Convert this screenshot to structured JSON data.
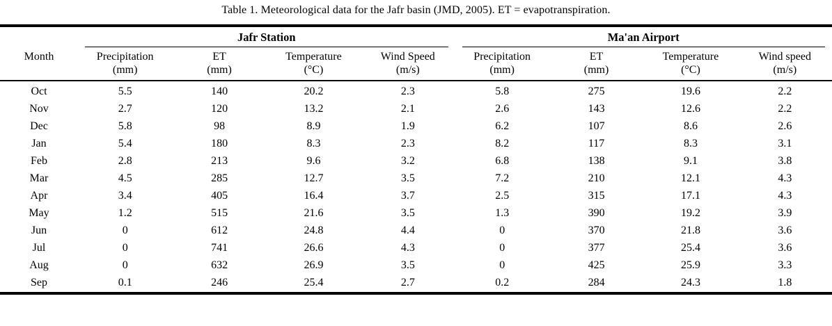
{
  "page": {
    "caption": "Table 1. Meteorological data for the Jafr basin (JMD, 2005). ET = evapotranspiration."
  },
  "colors": {
    "background": "#ffffff",
    "text": "#000000",
    "rule": "#000000"
  },
  "table": {
    "month_header": "Month",
    "groups": [
      {
        "label": "Jafr Station"
      },
      {
        "label": "Ma'an Airport"
      }
    ],
    "columns": [
      {
        "group": "Jafr Station",
        "name": "Precipitation",
        "unit": "(mm)"
      },
      {
        "group": "Jafr Station",
        "name": "ET",
        "unit": "(mm)"
      },
      {
        "group": "Jafr Station",
        "name": "Temperature",
        "unit": "(°C)"
      },
      {
        "group": "Jafr Station",
        "name": "Wind Speed",
        "unit": "(m/s)"
      },
      {
        "group": "Ma'an Airport",
        "name": "Precipitation",
        "unit": "(mm)"
      },
      {
        "group": "Ma'an Airport",
        "name": "ET",
        "unit": "(mm)"
      },
      {
        "group": "Ma'an Airport",
        "name": "Temperature",
        "unit": "(°C)"
      },
      {
        "group": "Ma'an Airport",
        "name": "Wind speed",
        "unit": "(m/s)"
      }
    ],
    "rows": [
      {
        "month": "Oct",
        "values": [
          "5.5",
          "140",
          "20.2",
          "2.3",
          "5.8",
          "275",
          "19.6",
          "2.2"
        ]
      },
      {
        "month": "Nov",
        "values": [
          "2.7",
          "120",
          "13.2",
          "2.1",
          "2.6",
          "143",
          "12.6",
          "2.2"
        ]
      },
      {
        "month": "Dec",
        "values": [
          "5.8",
          "98",
          "8.9",
          "1.9",
          "6.2",
          "107",
          "8.6",
          "2.6"
        ]
      },
      {
        "month": "Jan",
        "values": [
          "5.4",
          "180",
          "8.3",
          "2.3",
          "8.2",
          "117",
          "8.3",
          "3.1"
        ]
      },
      {
        "month": "Feb",
        "values": [
          "2.8",
          "213",
          "9.6",
          "3.2",
          "6.8",
          "138",
          "9.1",
          "3.8"
        ]
      },
      {
        "month": "Mar",
        "values": [
          "4.5",
          "285",
          "12.7",
          "3.5",
          "7.2",
          "210",
          "12.1",
          "4.3"
        ]
      },
      {
        "month": "Apr",
        "values": [
          "3.4",
          "405",
          "16.4",
          "3.7",
          "2.5",
          "315",
          "17.1",
          "4.3"
        ]
      },
      {
        "month": "May",
        "values": [
          "1.2",
          "515",
          "21.6",
          "3.5",
          "1.3",
          "390",
          "19.2",
          "3.9"
        ]
      },
      {
        "month": "Jun",
        "values": [
          "0",
          "612",
          "24.8",
          "4.4",
          "0",
          "370",
          "21.8",
          "3.6"
        ]
      },
      {
        "month": "Jul",
        "values": [
          "0",
          "741",
          "26.6",
          "4.3",
          "0",
          "377",
          "25.4",
          "3.6"
        ]
      },
      {
        "month": "Aug",
        "values": [
          "0",
          "632",
          "26.9",
          "3.5",
          "0",
          "425",
          "25.9",
          "3.3"
        ]
      },
      {
        "month": "Sep",
        "values": [
          "0.1",
          "246",
          "25.4",
          "2.7",
          "0.2",
          "284",
          "24.3",
          "1.8"
        ]
      }
    ]
  }
}
